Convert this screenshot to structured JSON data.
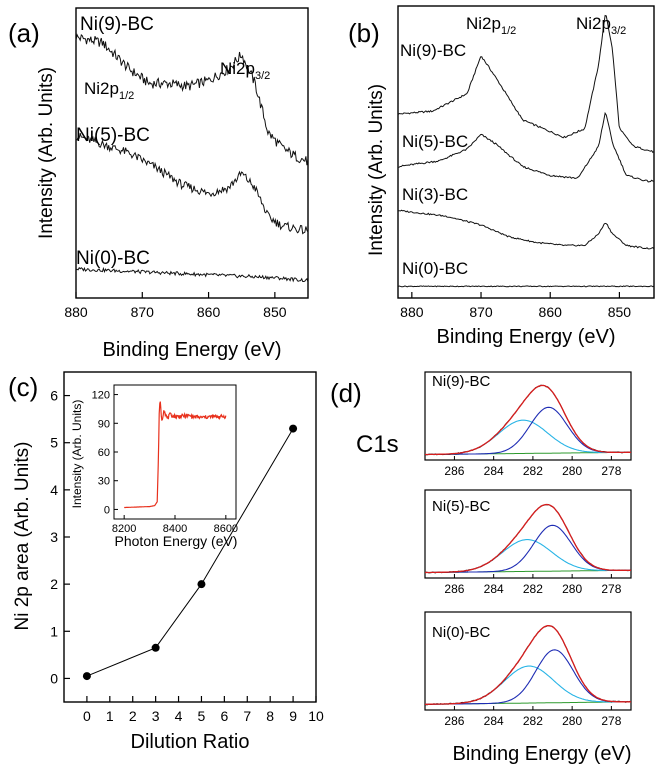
{
  "chart_data": [
    {
      "panel": "(a)",
      "type": "line",
      "xlabel": "Binding Energy (eV)",
      "ylabel": "Intensity (Arb. Units)",
      "xlim": [
        880,
        845
      ],
      "x_ticks": [
        "880",
        "870",
        "860",
        "850"
      ],
      "annotations": {
        "peak_32": "Ni2p3/2",
        "peak_12": "Ni2p1/2"
      },
      "series": [
        {
          "name": "Ni(9)-BC",
          "x": [
            880,
            876,
            872,
            869,
            866,
            863,
            860,
            857,
            855,
            853,
            851,
            849,
            847,
            845
          ],
          "values": [
            0.9,
            0.88,
            0.79,
            0.74,
            0.74,
            0.73,
            0.75,
            0.79,
            0.84,
            0.74,
            0.57,
            0.52,
            0.49,
            0.47
          ]
        },
        {
          "name": "Ni(5)-BC",
          "x": [
            880,
            876,
            872,
            868,
            864,
            860,
            857,
            855,
            853,
            851,
            849,
            847,
            845
          ],
          "values": [
            0.56,
            0.53,
            0.5,
            0.45,
            0.39,
            0.36,
            0.38,
            0.43,
            0.38,
            0.28,
            0.25,
            0.24,
            0.23
          ]
        },
        {
          "name": "Ni(0)-BC",
          "x": [
            880,
            870,
            860,
            850,
            845
          ],
          "values": [
            0.1,
            0.09,
            0.08,
            0.07,
            0.06
          ]
        }
      ]
    },
    {
      "panel": "(b)",
      "type": "line",
      "xlabel": "Binding Energy (eV)",
      "ylabel": "Intensity (Arb. Units)",
      "xlim": [
        882,
        845
      ],
      "x_ticks": [
        "880",
        "870",
        "860",
        "850"
      ],
      "annotations": {
        "peak_12": "Ni2p1/2",
        "peak_32": "Ni2p3/2"
      },
      "series": [
        {
          "name": "Ni(9)-BC",
          "x": [
            882,
            877,
            872,
            870,
            868,
            864,
            861,
            858,
            855,
            853,
            852,
            851,
            850,
            848,
            845
          ],
          "values": [
            0.63,
            0.64,
            0.7,
            0.83,
            0.76,
            0.61,
            0.58,
            0.55,
            0.58,
            0.8,
            0.98,
            0.85,
            0.58,
            0.52,
            0.5
          ]
        },
        {
          "name": "Ni(5)-BC",
          "x": [
            882,
            876,
            872,
            870,
            868,
            864,
            860,
            856,
            853,
            852,
            851,
            849,
            846,
            845
          ],
          "values": [
            0.45,
            0.47,
            0.51,
            0.56,
            0.53,
            0.45,
            0.42,
            0.41,
            0.52,
            0.64,
            0.53,
            0.42,
            0.4,
            0.4
          ]
        },
        {
          "name": "Ni(3)-BC",
          "x": [
            882,
            875,
            870,
            866,
            862,
            858,
            855,
            853,
            852,
            851,
            849,
            846,
            845
          ],
          "values": [
            0.3,
            0.28,
            0.25,
            0.21,
            0.19,
            0.18,
            0.18,
            0.22,
            0.26,
            0.22,
            0.18,
            0.17,
            0.17
          ]
        },
        {
          "name": "Ni(0)-BC",
          "x": [
            882,
            870,
            860,
            850,
            845
          ],
          "values": [
            0.04,
            0.04,
            0.04,
            0.04,
            0.04
          ]
        }
      ]
    },
    {
      "panel": "(c)",
      "type": "scatter",
      "xlabel": "Dilution Ratio",
      "ylabel": "Ni 2p area (Arb. Units)",
      "xlim": [
        -1,
        10
      ],
      "ylim": [
        -0.5,
        6.5
      ],
      "x_ticks": [
        "0",
        "1",
        "2",
        "3",
        "4",
        "5",
        "6",
        "7",
        "8",
        "9",
        "10"
      ],
      "y_ticks": [
        "0",
        "1",
        "2",
        "3",
        "4",
        "5",
        "6"
      ],
      "x": [
        0,
        3,
        5,
        9
      ],
      "values": [
        0.05,
        0.65,
        2.0,
        5.3
      ],
      "inset": {
        "type": "line",
        "xlabel": "Photon Energy (eV)",
        "ylabel": "Intensity (Arb. Units)",
        "xlim": [
          8160,
          8640
        ],
        "ylim": [
          -10,
          130
        ],
        "x_ticks": [
          "8200",
          "8400",
          "8600"
        ],
        "y_ticks": [
          "0",
          "30",
          "60",
          "90",
          "120"
        ],
        "color": "#e8301c",
        "x": [
          8200,
          8300,
          8320,
          8330,
          8335,
          8338,
          8341,
          8344,
          8348,
          8352,
          8356,
          8362,
          8370,
          8380,
          8400,
          8450,
          8500,
          8550,
          8600
        ],
        "values": [
          2,
          3,
          4,
          8,
          55,
          100,
          116,
          106,
          92,
          97,
          105,
          100,
          95,
          99,
          97,
          98,
          96,
          97,
          97
        ]
      }
    },
    {
      "panel": "(d)",
      "type": "line",
      "title": "C1s",
      "xlabel": "Binding Energy (eV)",
      "xlim": [
        287.5,
        277
      ],
      "x_ticks": [
        "286",
        "284",
        "282",
        "280",
        "278"
      ],
      "subplots": [
        {
          "name": "Ni(9)-BC",
          "c1": 281.2,
          "c2": 282.5,
          "a1": 0.62,
          "a2": 0.45
        },
        {
          "name": "Ni(5)-BC",
          "c1": 281.0,
          "c2": 282.3,
          "a1": 0.62,
          "a2": 0.43
        },
        {
          "name": "Ni(0)-BC",
          "c1": 280.9,
          "c2": 282.2,
          "a1": 0.63,
          "a2": 0.44
        }
      ],
      "colors": {
        "data": "#000000",
        "fit": "#d81e1e",
        "peak1": "#1f2db4",
        "peak2": "#28b4e6",
        "background": "#2e9a2e"
      }
    }
  ]
}
